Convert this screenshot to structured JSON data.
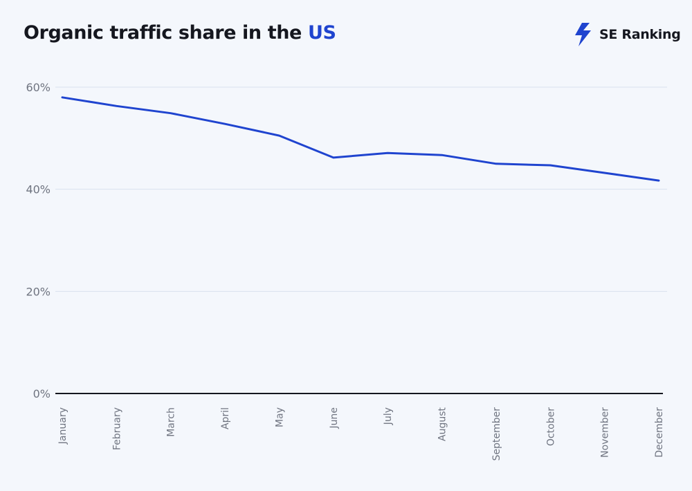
{
  "header": {
    "title_prefix": "Organic traffic share in the",
    "title_highlight": "US",
    "brand_name": "SE Ranking",
    "brand_icon": "se-ranking-bolt-icon"
  },
  "colors": {
    "accent": "#1f44cf",
    "line": "#1f44cf",
    "grid": "#d9e2ee",
    "baseline": "#15171f",
    "background": "#f4f7fc"
  },
  "chart_data": {
    "type": "line",
    "title": "Organic traffic share in the US",
    "xlabel": "",
    "ylabel": "",
    "categories": [
      "January",
      "February",
      "March",
      "April",
      "May",
      "June",
      "July",
      "August",
      "September",
      "October",
      "November",
      "December"
    ],
    "series": [
      {
        "values": [
          58,
          56.3,
          54.9,
          52.8,
          50.5,
          46.2,
          47.1,
          46.7,
          45.0,
          44.7,
          43.2,
          41.7
        ]
      }
    ],
    "ylim": [
      0,
      60
    ],
    "yticks": [
      0,
      20,
      40,
      60
    ],
    "ytick_labels": [
      "0%",
      "20%",
      "40%",
      "60%"
    ],
    "grid": true,
    "legend": "none"
  }
}
